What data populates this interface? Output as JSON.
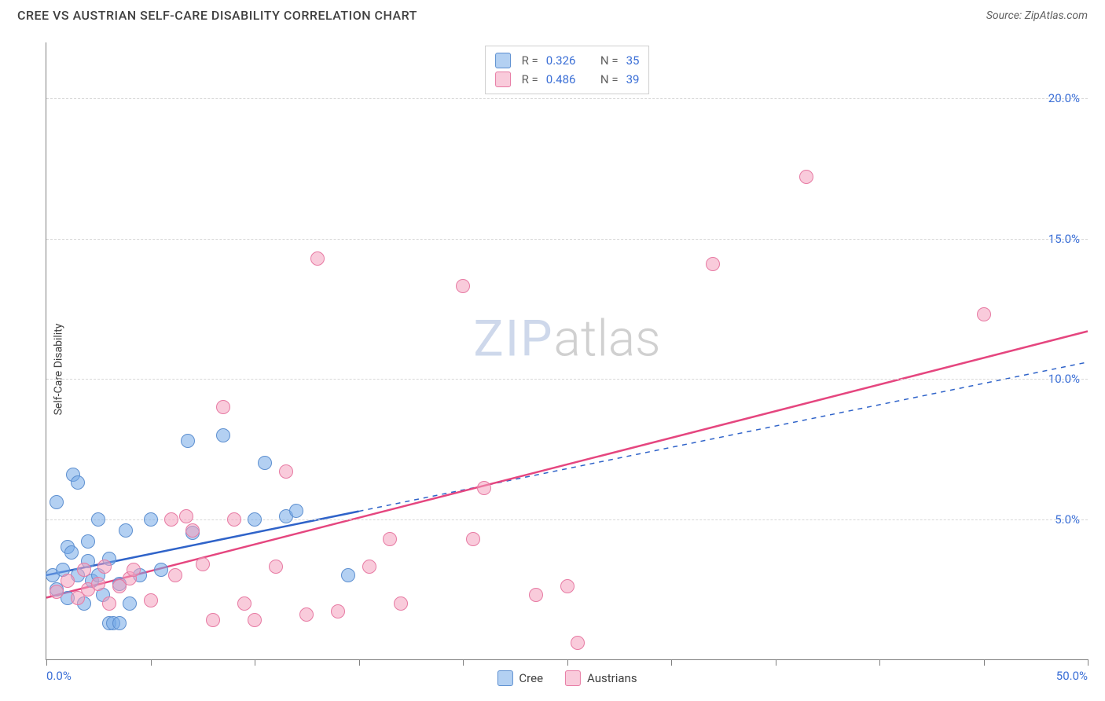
{
  "title": "CREE VS AUSTRIAN SELF-CARE DISABILITY CORRELATION CHART",
  "source": "Source: ZipAtlas.com",
  "ylabel": "Self-Care Disability",
  "watermark_a": "ZIP",
  "watermark_b": "atlas",
  "chart": {
    "type": "scatter",
    "background_color": "#ffffff",
    "grid_color": "#d8d8d8",
    "axis_color": "#808080",
    "tick_label_color": "#3b6fd6",
    "xlim": [
      0,
      50
    ],
    "ylim": [
      0,
      22
    ],
    "y_gridlines": [
      5,
      10,
      15,
      20
    ],
    "y_tick_labels": [
      "5.0%",
      "10.0%",
      "15.0%",
      "20.0%"
    ],
    "x_ticks": [
      0,
      5,
      10,
      15,
      20,
      25,
      30,
      35,
      40,
      45,
      50
    ],
    "x_end_labels": [
      "0.0%",
      "50.0%"
    ],
    "point_radius": 9,
    "series": [
      {
        "name": "Cree",
        "fill": "rgba(117,169,232,0.55)",
        "stroke": "#5d8fd0",
        "reg_color": "#2f63c9",
        "reg_dash_after": 15,
        "reg_x_range": [
          0,
          50
        ],
        "reg_y_range": [
          3.0,
          10.6
        ],
        "solid_until_x": 15,
        "data": [
          [
            0.3,
            3.0
          ],
          [
            0.5,
            2.5
          ],
          [
            0.5,
            5.6
          ],
          [
            0.8,
            3.2
          ],
          [
            1.0,
            2.2
          ],
          [
            1.0,
            4.0
          ],
          [
            1.2,
            3.8
          ],
          [
            1.3,
            6.6
          ],
          [
            1.5,
            6.3
          ],
          [
            1.5,
            3.0
          ],
          [
            1.8,
            2.0
          ],
          [
            2.0,
            3.5
          ],
          [
            2.0,
            4.2
          ],
          [
            2.2,
            2.8
          ],
          [
            2.5,
            3.0
          ],
          [
            2.5,
            5.0
          ],
          [
            2.7,
            2.3
          ],
          [
            3.0,
            3.6
          ],
          [
            3.0,
            1.3
          ],
          [
            3.2,
            1.3
          ],
          [
            3.5,
            2.7
          ],
          [
            3.5,
            1.3
          ],
          [
            3.8,
            4.6
          ],
          [
            4.0,
            2.0
          ],
          [
            4.5,
            3.0
          ],
          [
            5.0,
            5.0
          ],
          [
            5.5,
            3.2
          ],
          [
            6.8,
            7.8
          ],
          [
            7.0,
            4.5
          ],
          [
            8.5,
            8.0
          ],
          [
            10.0,
            5.0
          ],
          [
            10.5,
            7.0
          ],
          [
            11.5,
            5.1
          ],
          [
            12.0,
            5.3
          ],
          [
            14.5,
            3.0
          ]
        ]
      },
      {
        "name": "Austrians",
        "fill": "rgba(244,160,189,0.55)",
        "stroke": "#e77aa3",
        "reg_color": "#e5467f",
        "reg_dash_after": 100,
        "reg_x_range": [
          0,
          50
        ],
        "reg_y_range": [
          2.2,
          11.7
        ],
        "solid_until_x": 50,
        "data": [
          [
            0.5,
            2.4
          ],
          [
            1.0,
            2.8
          ],
          [
            1.5,
            2.2
          ],
          [
            1.8,
            3.2
          ],
          [
            2.0,
            2.5
          ],
          [
            2.5,
            2.7
          ],
          [
            2.8,
            3.3
          ],
          [
            3.0,
            2.0
          ],
          [
            3.5,
            2.6
          ],
          [
            4.0,
            2.9
          ],
          [
            4.2,
            3.2
          ],
          [
            5.0,
            2.1
          ],
          [
            6.0,
            5.0
          ],
          [
            6.2,
            3.0
          ],
          [
            6.7,
            5.1
          ],
          [
            7.0,
            4.6
          ],
          [
            7.5,
            3.4
          ],
          [
            8.0,
            1.4
          ],
          [
            8.5,
            9.0
          ],
          [
            9.0,
            5.0
          ],
          [
            9.5,
            2.0
          ],
          [
            10.0,
            1.4
          ],
          [
            11.0,
            3.3
          ],
          [
            11.5,
            6.7
          ],
          [
            12.5,
            1.6
          ],
          [
            13.0,
            14.3
          ],
          [
            14.0,
            1.7
          ],
          [
            15.5,
            3.3
          ],
          [
            16.5,
            4.3
          ],
          [
            17.0,
            2.0
          ],
          [
            20.0,
            13.3
          ],
          [
            20.5,
            4.3
          ],
          [
            21.0,
            6.1
          ],
          [
            23.5,
            2.3
          ],
          [
            25.0,
            2.6
          ],
          [
            25.5,
            0.6
          ],
          [
            32.0,
            14.1
          ],
          [
            36.5,
            17.2
          ],
          [
            45.0,
            12.3
          ]
        ]
      }
    ]
  },
  "legend_top": [
    {
      "swatch_fill": "rgba(117,169,232,0.55)",
      "swatch_stroke": "#5d8fd0",
      "r_label": "R =",
      "r_value": "0.326",
      "n_label": "N =",
      "n_value": "35"
    },
    {
      "swatch_fill": "rgba(244,160,189,0.55)",
      "swatch_stroke": "#e77aa3",
      "r_label": "R =",
      "r_value": "0.486",
      "n_label": "N =",
      "n_value": "39"
    }
  ],
  "legend_bottom": [
    {
      "swatch_fill": "rgba(117,169,232,0.55)",
      "swatch_stroke": "#5d8fd0",
      "label": "Cree"
    },
    {
      "swatch_fill": "rgba(244,160,189,0.55)",
      "swatch_stroke": "#e77aa3",
      "label": "Austrians"
    }
  ]
}
